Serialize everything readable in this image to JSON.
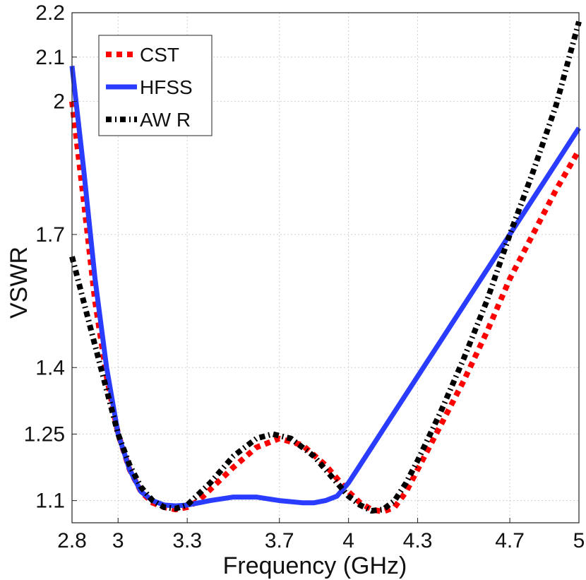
{
  "chart_data": {
    "type": "line",
    "title": "",
    "xlabel": "Frequency (GHz)",
    "ylabel": "VSWR",
    "xlim": [
      2.8,
      5.0
    ],
    "ylim": [
      1.05,
      2.2
    ],
    "x_ticks": [
      2.8,
      3.0,
      3.3,
      3.7,
      4.0,
      4.3,
      4.7,
      5.0
    ],
    "x_tick_labels": [
      "2.8",
      "3",
      "3.3",
      "3.7",
      "4",
      "4.3",
      "4.7",
      "5"
    ],
    "y_ticks": [
      1.1,
      1.25,
      1.4,
      1.7,
      2.0,
      2.1,
      2.2
    ],
    "y_tick_labels": [
      "1.1",
      "1.25",
      "1.4",
      "1.7",
      "2",
      "2.1",
      "2.2"
    ],
    "grid": true,
    "legend_position": "top-left",
    "series": [
      {
        "name": "CST",
        "color": "#ff0000",
        "style": "dotted",
        "points": [
          [
            2.8,
            2.0
          ],
          [
            2.85,
            1.78
          ],
          [
            2.9,
            1.55
          ],
          [
            2.95,
            1.38
          ],
          [
            3.0,
            1.25
          ],
          [
            3.05,
            1.17
          ],
          [
            3.1,
            1.12
          ],
          [
            3.15,
            1.095
          ],
          [
            3.2,
            1.085
          ],
          [
            3.25,
            1.08
          ],
          [
            3.3,
            1.085
          ],
          [
            3.35,
            1.1
          ],
          [
            3.4,
            1.125
          ],
          [
            3.5,
            1.175
          ],
          [
            3.6,
            1.22
          ],
          [
            3.7,
            1.24
          ],
          [
            3.8,
            1.225
          ],
          [
            3.9,
            1.18
          ],
          [
            4.0,
            1.12
          ],
          [
            4.05,
            1.095
          ],
          [
            4.1,
            1.08
          ],
          [
            4.15,
            1.075
          ],
          [
            4.2,
            1.085
          ],
          [
            4.25,
            1.12
          ],
          [
            4.3,
            1.17
          ],
          [
            4.4,
            1.27
          ],
          [
            4.5,
            1.37
          ],
          [
            4.6,
            1.48
          ],
          [
            4.7,
            1.6
          ],
          [
            4.8,
            1.7
          ],
          [
            4.9,
            1.8
          ],
          [
            5.0,
            1.89
          ]
        ]
      },
      {
        "name": "HFSS",
        "color": "#2a3cff",
        "style": "solid",
        "points": [
          [
            2.8,
            2.08
          ],
          [
            2.85,
            1.85
          ],
          [
            2.9,
            1.6
          ],
          [
            2.95,
            1.4
          ],
          [
            3.0,
            1.25
          ],
          [
            3.05,
            1.17
          ],
          [
            3.1,
            1.12
          ],
          [
            3.15,
            1.1
          ],
          [
            3.2,
            1.09
          ],
          [
            3.25,
            1.088
          ],
          [
            3.3,
            1.09
          ],
          [
            3.4,
            1.1
          ],
          [
            3.5,
            1.108
          ],
          [
            3.6,
            1.108
          ],
          [
            3.7,
            1.1
          ],
          [
            3.8,
            1.095
          ],
          [
            3.85,
            1.095
          ],
          [
            3.9,
            1.1
          ],
          [
            3.95,
            1.11
          ],
          [
            4.0,
            1.14
          ],
          [
            4.05,
            1.18
          ],
          [
            4.1,
            1.22
          ],
          [
            4.2,
            1.3
          ],
          [
            4.3,
            1.38
          ],
          [
            4.4,
            1.46
          ],
          [
            4.5,
            1.54
          ],
          [
            4.6,
            1.62
          ],
          [
            4.7,
            1.7
          ],
          [
            4.8,
            1.78
          ],
          [
            4.9,
            1.86
          ],
          [
            5.0,
            1.94
          ]
        ]
      },
      {
        "name": "AW R",
        "color": "#000000",
        "style": "dashdot",
        "points": [
          [
            2.8,
            1.65
          ],
          [
            2.85,
            1.55
          ],
          [
            2.9,
            1.45
          ],
          [
            2.95,
            1.35
          ],
          [
            3.0,
            1.25
          ],
          [
            3.05,
            1.18
          ],
          [
            3.1,
            1.13
          ],
          [
            3.15,
            1.1
          ],
          [
            3.2,
            1.085
          ],
          [
            3.25,
            1.082
          ],
          [
            3.3,
            1.09
          ],
          [
            3.4,
            1.14
          ],
          [
            3.5,
            1.2
          ],
          [
            3.6,
            1.24
          ],
          [
            3.67,
            1.25
          ],
          [
            3.75,
            1.24
          ],
          [
            3.85,
            1.2
          ],
          [
            3.95,
            1.14
          ],
          [
            4.0,
            1.11
          ],
          [
            4.05,
            1.09
          ],
          [
            4.1,
            1.077
          ],
          [
            4.15,
            1.08
          ],
          [
            4.2,
            1.1
          ],
          [
            4.25,
            1.14
          ],
          [
            4.3,
            1.19
          ],
          [
            4.4,
            1.3
          ],
          [
            4.5,
            1.42
          ],
          [
            4.6,
            1.55
          ],
          [
            4.7,
            1.7
          ],
          [
            4.8,
            1.84
          ],
          [
            4.9,
            1.99
          ],
          [
            5.0,
            2.18
          ]
        ]
      }
    ]
  }
}
